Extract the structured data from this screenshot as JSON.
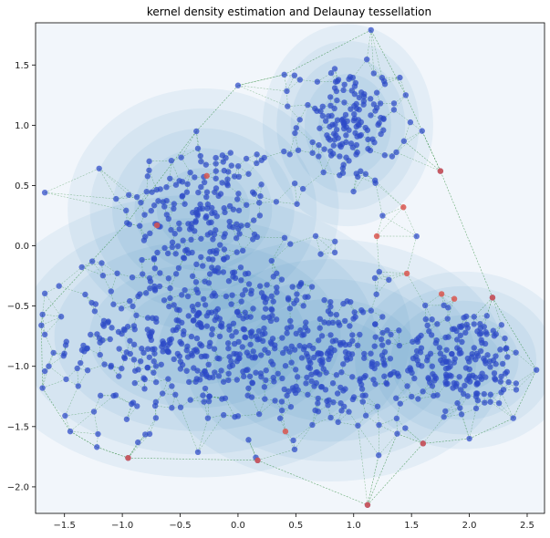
{
  "chart_data": {
    "type": "scatter",
    "title": "kernel density estimation and Delaunay tessellation",
    "xlabel": "",
    "ylabel": "",
    "xlim": [
      -1.75,
      2.65
    ],
    "ylim": [
      -2.22,
      1.85
    ],
    "xticks": [
      -1.5,
      -1.0,
      -0.5,
      0.0,
      0.5,
      1.0,
      1.5,
      2.0,
      2.5
    ],
    "xtick_labels": [
      "−1.5",
      "−1.0",
      "−0.5",
      "0.0",
      "0.5",
      "1.0",
      "1.5",
      "2.0",
      "2.5"
    ],
    "yticks": [
      -2.0,
      -1.5,
      -1.0,
      -0.5,
      0.0,
      0.5,
      1.0,
      1.5
    ],
    "ytick_labels": [
      "−2.0",
      "−1.5",
      "−1.0",
      "−0.5",
      "0.0",
      "0.5",
      "1.0",
      "1.5"
    ],
    "grid": false,
    "layers": [
      "density-contours",
      "delaunay-edges",
      "points"
    ],
    "colors": {
      "background": "#f2f6fb",
      "density": "#2f7fb8",
      "edges": "#2e8b3c",
      "points": "#2d49c8",
      "outliers": "#d9564f"
    },
    "clusters": [
      {
        "center": [
          -0.3,
          0.3
        ],
        "spread": [
          0.35,
          0.3
        ],
        "count": 180
      },
      {
        "center": [
          -0.35,
          -0.75
        ],
        "spread": [
          0.55,
          0.35
        ],
        "count": 420
      },
      {
        "center": [
          0.95,
          1.0
        ],
        "spread": [
          0.22,
          0.25
        ],
        "count": 160
      },
      {
        "center": [
          0.8,
          -0.95
        ],
        "spread": [
          0.45,
          0.3
        ],
        "count": 230
      },
      {
        "center": [
          1.95,
          -0.95
        ],
        "spread": [
          0.28,
          0.22
        ],
        "count": 180
      }
    ],
    "outliers": [
      [
        -0.27,
        0.58
      ],
      [
        -0.7,
        0.17
      ],
      [
        1.75,
        0.62
      ],
      [
        1.43,
        0.32
      ],
      [
        1.2,
        0.08
      ],
      [
        1.46,
        -0.23
      ],
      [
        1.76,
        -0.4
      ],
      [
        1.87,
        -0.44
      ],
      [
        2.2,
        -0.43
      ],
      [
        -0.95,
        -1.76
      ],
      [
        0.17,
        -1.78
      ],
      [
        0.41,
        -1.54
      ],
      [
        1.6,
        -1.64
      ],
      [
        1.12,
        -2.15
      ]
    ],
    "hull_points": [
      [
        -1.69,
        -0.57
      ],
      [
        -1.7,
        -0.66
      ],
      [
        -1.69,
        -1.18
      ],
      [
        -1.45,
        -1.54
      ],
      [
        -1.22,
        -1.67
      ],
      [
        -0.95,
        -1.76
      ],
      [
        0.17,
        -1.78
      ],
      [
        1.12,
        -2.15
      ],
      [
        1.6,
        -1.64
      ],
      [
        2.0,
        -1.6
      ],
      [
        2.38,
        -1.43
      ],
      [
        2.58,
        -1.03
      ],
      [
        2.2,
        -0.43
      ],
      [
        1.75,
        0.62
      ],
      [
        1.45,
        1.25
      ],
      [
        1.15,
        1.79
      ],
      [
        0.4,
        1.42
      ],
      [
        0.0,
        1.33
      ],
      [
        -0.36,
        0.95
      ],
      [
        -0.96,
        0.19
      ]
    ],
    "density_levels": 5
  }
}
